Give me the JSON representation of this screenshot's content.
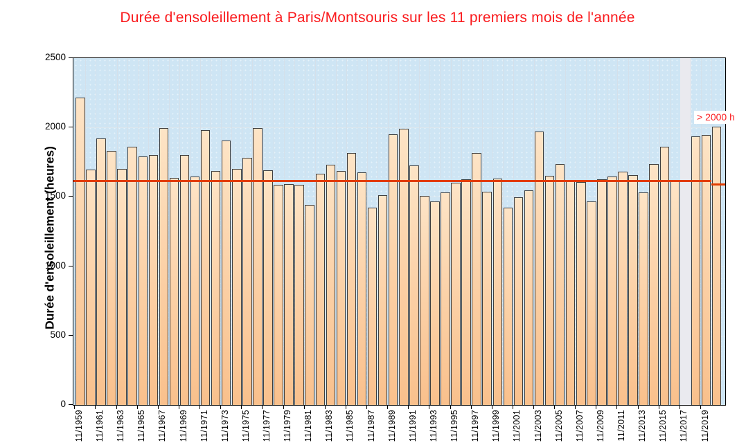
{
  "title": {
    "text": "Durée d'ensoleillement à Paris/Montsouris sur les 11 premiers mois de l'année",
    "color": "#fa1b1e"
  },
  "annotation": {
    "text": "> 2000 h",
    "color": "#fa1b1e"
  },
  "y_axis": {
    "title": "Durée d'ensoleillement (heures)",
    "ticks": [
      0,
      500,
      1000,
      1500,
      2000,
      2500
    ],
    "max": 2500
  },
  "x_axis": {
    "labels": [
      "11/1959",
      "11/1961",
      "11/1963",
      "11/1965",
      "11/1967",
      "11/1969",
      "11/1971",
      "11/1973",
      "11/1975",
      "11/1977",
      "11/1979",
      "11/1981",
      "11/1983",
      "11/1985",
      "11/1987",
      "11/1989",
      "11/1991",
      "11/1993",
      "11/1995",
      "11/1997",
      "11/1999",
      "11/2001",
      "11/2003",
      "11/2005",
      "11/2007",
      "11/2009",
      "11/2011",
      "11/2013",
      "11/2015",
      "11/2017",
      "11/2019"
    ]
  },
  "chart_data": {
    "type": "bar",
    "title": "Durée d'ensoleillement à Paris/Montsouris sur les 11 premiers mois de l'année",
    "xlabel": "",
    "ylabel": "Durée d'ensoleillement (heures)",
    "ylim": [
      0,
      2500
    ],
    "grid": true,
    "years": [
      1959,
      1960,
      1961,
      1962,
      1963,
      1964,
      1965,
      1966,
      1967,
      1968,
      1969,
      1970,
      1971,
      1972,
      1973,
      1974,
      1975,
      1976,
      1977,
      1978,
      1979,
      1980,
      1981,
      1982,
      1983,
      1984,
      1985,
      1986,
      1987,
      1988,
      1989,
      1990,
      1991,
      1992,
      1993,
      1994,
      1995,
      1996,
      1997,
      1998,
      1999,
      2000,
      2001,
      2002,
      2003,
      2004,
      2005,
      2006,
      2007,
      2008,
      2009,
      2010,
      2011,
      2012,
      2013,
      2014,
      2015,
      2016,
      2017,
      2018,
      2019,
      2020
    ],
    "values": [
      2215,
      1695,
      1920,
      1830,
      1700,
      1860,
      1790,
      1800,
      1998,
      1635,
      1800,
      1645,
      1980,
      1685,
      1905,
      1700,
      1780,
      1998,
      1690,
      1585,
      1590,
      1588,
      1443,
      1668,
      1730,
      1685,
      1818,
      1678,
      1423,
      1510,
      1950,
      1990,
      1727,
      1507,
      1465,
      1532,
      1603,
      1628,
      1818,
      1535,
      1632,
      1423,
      1498,
      1548,
      1970,
      1653,
      1737,
      1610,
      1607,
      1465,
      1628,
      1645,
      1683,
      1655,
      1532,
      1737,
      1860,
      1610,
      null,
      1935,
      1948,
      2005
    ],
    "missing_years": [
      2017
    ],
    "reference_line": {
      "value": 1615,
      "final_segment_value": 1590,
      "final_segment_year": 2020,
      "color": "#e23c00"
    },
    "legend": null
  },
  "colors": {
    "plot_background": "#cee5f4",
    "bar_fill_light": "#fde4c6",
    "bar_fill_dark": "#f9c08c",
    "bar_border": "#3f3f3f",
    "reference_line": "#e23c00",
    "missing_band": "#eaeaef",
    "gridline": "#dde7ee",
    "title_red": "#fa1b1e"
  }
}
